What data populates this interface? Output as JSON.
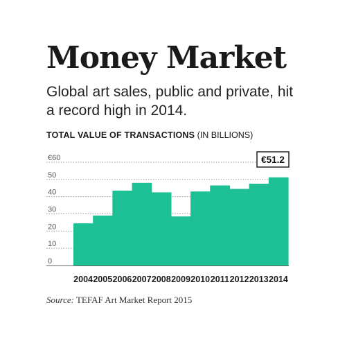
{
  "title": "Money Market",
  "subtitle": "Global art sales, public and private, hit a record high in 2014.",
  "chart_heading": {
    "bold": "TOTAL VALUE OF TRANSACTIONS",
    "light": " (IN BILLIONS)"
  },
  "source": {
    "label": "Source:",
    "text": " TEFAF Art Market Report 2015"
  },
  "colors": {
    "bar": "#1dbf95",
    "grid": "#9a9a9a",
    "text": "#1a1a1a"
  },
  "chart_data": {
    "type": "bar",
    "categories": [
      "2004",
      "2005",
      "2006",
      "2007",
      "2008",
      "2009",
      "2010",
      "2011",
      "2012",
      "2013",
      "2014"
    ],
    "values": [
      24.5,
      29,
      43.5,
      48,
      42.5,
      28.5,
      43,
      46.5,
      44.5,
      47.5,
      51.2
    ],
    "ylim": [
      0,
      60
    ],
    "yticks": [
      "0",
      "10",
      "20",
      "30",
      "40",
      "50",
      "€60"
    ],
    "ytick_values": [
      0,
      10,
      20,
      30,
      40,
      50,
      60
    ],
    "grid": true,
    "callout": "€51.2"
  }
}
